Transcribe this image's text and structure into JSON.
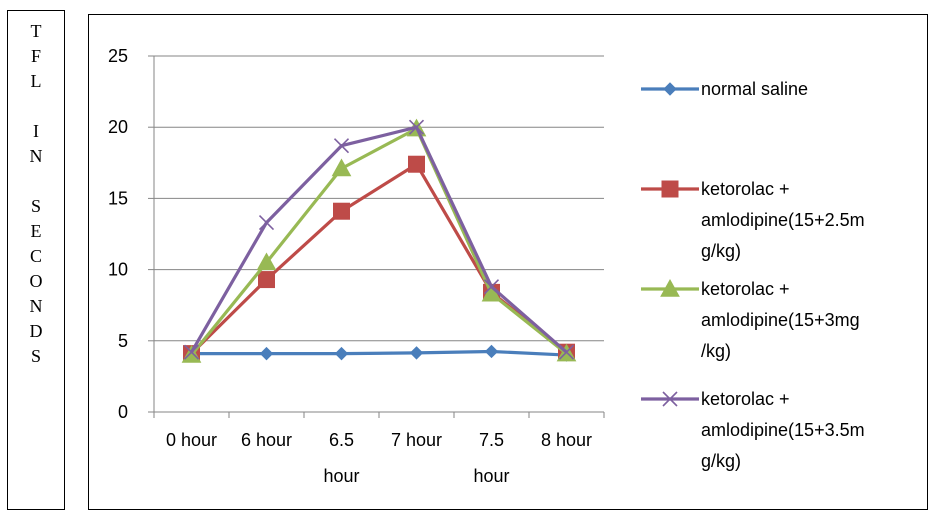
{
  "ylabel_text": "TFL IN SECONDS",
  "chart_data": {
    "type": "line",
    "ylabel": "TFL IN SECONDS",
    "xlabel": "",
    "ylim": [
      0,
      25
    ],
    "yticks": [
      0,
      5,
      10,
      15,
      20,
      25
    ],
    "grid": true,
    "legend_position": "right",
    "categories": [
      "0 hour",
      "6 hour",
      "6.5 hour",
      "7 hour",
      "7.5 hour",
      "8 hour"
    ],
    "category_lines": [
      [
        "0 hour"
      ],
      [
        "6 hour"
      ],
      [
        "6.5",
        "hour"
      ],
      [
        "7 hour"
      ],
      [
        "7.5",
        "hour"
      ],
      [
        "8 hour"
      ]
    ],
    "series": [
      {
        "name": "normal saline",
        "name_lines": [
          "normal saline"
        ],
        "color": "#4a7ebb",
        "marker": "diamond",
        "values": [
          4.1,
          4.1,
          4.1,
          4.15,
          4.25,
          4.0
        ]
      },
      {
        "name": "ketorolac + amlodipine(15+2.5mg/kg)",
        "name_lines": [
          "ketorolac +",
          "amlodipine(15+2.5m",
          "g/kg)"
        ],
        "color": "#be4b48",
        "marker": "square",
        "values": [
          4.1,
          9.3,
          14.1,
          17.4,
          8.4,
          4.2
        ]
      },
      {
        "name": "ketorolac + amlodipine(15+3mg/kg)",
        "name_lines": [
          "ketorolac +",
          "amlodipine(15+3mg",
          "/kg)"
        ],
        "color": "#98b954",
        "marker": "triangle",
        "values": [
          4.0,
          10.5,
          17.1,
          19.9,
          8.3,
          4.1
        ]
      },
      {
        "name": "ketorolac + amlodipine(15+3.5mg/kg)",
        "name_lines": [
          "ketorolac +",
          "amlodipine(15+3.5m",
          "g/kg)"
        ],
        "color": "#7d60a0",
        "marker": "x",
        "values": [
          4.2,
          13.3,
          18.7,
          20.0,
          8.8,
          4.2
        ]
      }
    ]
  }
}
